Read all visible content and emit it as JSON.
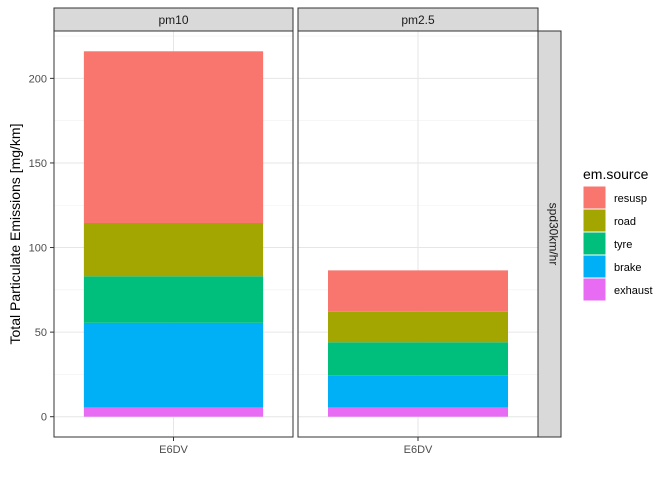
{
  "chart_data": {
    "type": "bar",
    "stacked": true,
    "ylabel": "Total Particulate Emissions [mg/km]",
    "xlabel": "",
    "ylim": [
      -12,
      228
    ],
    "y_ticks": [
      0,
      50,
      100,
      150,
      200
    ],
    "categories": [
      "E6DV"
    ],
    "facet_columns": [
      "pm10",
      "pm2.5"
    ],
    "facet_row": "spd30km/hr",
    "legend": {
      "title": "em.source",
      "position": "right",
      "entries": [
        {
          "name": "resusp",
          "color": "#F8766D"
        },
        {
          "name": "road",
          "color": "#A3A500"
        },
        {
          "name": "tyre",
          "color": "#00BF7D"
        },
        {
          "name": "brake",
          "color": "#00B0F6"
        },
        {
          "name": "exhaust",
          "color": "#E76BF3"
        }
      ]
    },
    "stack_order_bottom_to_top": [
      "exhaust",
      "brake",
      "tyre",
      "road",
      "resusp"
    ],
    "panels": [
      {
        "facet": "pm10",
        "category": "E6DV",
        "values": {
          "exhaust": 5.5,
          "brake": 50,
          "tyre": 27.5,
          "road": 31.5,
          "resusp": 101.5
        }
      },
      {
        "facet": "pm2.5",
        "category": "E6DV",
        "values": {
          "exhaust": 5.5,
          "brake": 19,
          "tyre": 19.5,
          "road": 18,
          "resusp": 24.5
        }
      }
    ]
  }
}
